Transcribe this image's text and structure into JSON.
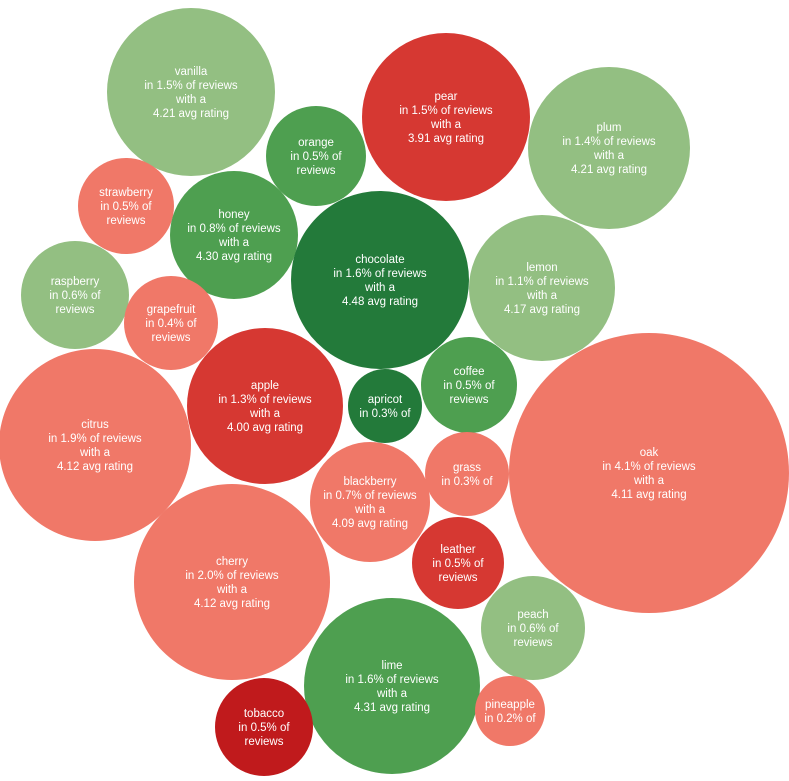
{
  "chart_data": {
    "type": "bubble",
    "title": "",
    "color_scale": {
      "low": "#c62020",
      "mid_low": "#f07868",
      "mid_high": "#93bf82",
      "high": "#237a3a"
    },
    "bubbles": [
      {
        "name": "vanilla",
        "share": "1.5%",
        "rating": "4.21",
        "lines": [
          "vanilla",
          "in 1.5% of reviews",
          "with a",
          "4.21 avg rating"
        ],
        "color": "#93bf82"
      },
      {
        "name": "pear",
        "share": "1.5%",
        "rating": "3.91",
        "lines": [
          "pear",
          "in 1.5% of reviews",
          "with a",
          "3.91 avg rating"
        ],
        "color": "#d63832"
      },
      {
        "name": "plum",
        "share": "1.4%",
        "rating": "4.21",
        "lines": [
          "plum",
          "in 1.4% of reviews",
          "with a",
          "4.21 avg rating"
        ],
        "color": "#93bf82"
      },
      {
        "name": "orange",
        "share": "0.5%",
        "rating": "",
        "lines": [
          "orange",
          "in 0.5% of",
          "reviews"
        ],
        "color": "#4e9f50"
      },
      {
        "name": "strawberry",
        "share": "0.5%",
        "rating": "",
        "lines": [
          "strawberry",
          "in 0.5% of",
          "reviews"
        ],
        "color": "#f07868"
      },
      {
        "name": "honey",
        "share": "0.8%",
        "rating": "4.30",
        "lines": [
          "honey",
          "in 0.8% of reviews",
          "with a",
          "4.30 avg rating"
        ],
        "color": "#4e9f50"
      },
      {
        "name": "chocolate",
        "share": "1.6%",
        "rating": "4.48",
        "lines": [
          "chocolate",
          "in 1.6% of reviews",
          "with a",
          "4.48 avg rating"
        ],
        "color": "#237a3a"
      },
      {
        "name": "lemon",
        "share": "1.1%",
        "rating": "4.17",
        "lines": [
          "lemon",
          "in 1.1% of reviews",
          "with a",
          "4.17 avg rating"
        ],
        "color": "#93bf82"
      },
      {
        "name": "raspberry",
        "share": "0.6%",
        "rating": "",
        "lines": [
          "raspberry",
          "in 0.6% of",
          "reviews"
        ],
        "color": "#93bf82"
      },
      {
        "name": "grapefruit",
        "share": "0.4%",
        "rating": "",
        "lines": [
          "grapefruit",
          "in 0.4% of",
          "reviews"
        ],
        "color": "#f07868"
      },
      {
        "name": "apple",
        "share": "1.3%",
        "rating": "4.00",
        "lines": [
          "apple",
          "in 1.3% of reviews",
          "with a",
          "4.00 avg rating"
        ],
        "color": "#d63832"
      },
      {
        "name": "apricot",
        "share": "0.3%",
        "rating": "",
        "lines": [
          "apricot",
          "in 0.3% of"
        ],
        "color": "#237a3a"
      },
      {
        "name": "coffee",
        "share": "0.5%",
        "rating": "",
        "lines": [
          "coffee",
          "in 0.5% of",
          "reviews"
        ],
        "color": "#4e9f50"
      },
      {
        "name": "citrus",
        "share": "1.9%",
        "rating": "4.12",
        "lines": [
          "citrus",
          "in 1.9% of reviews",
          "with a",
          "4.12 avg rating"
        ],
        "color": "#f07868"
      },
      {
        "name": "oak",
        "share": "4.1%",
        "rating": "4.11",
        "lines": [
          "oak",
          "in 4.1% of reviews",
          "with a",
          "4.11 avg rating"
        ],
        "color": "#f07868"
      },
      {
        "name": "grass",
        "share": "0.3%",
        "rating": "",
        "lines": [
          "grass",
          "in 0.3% of"
        ],
        "color": "#f07868"
      },
      {
        "name": "blackberry",
        "share": "0.7%",
        "rating": "4.09",
        "lines": [
          "blackberry",
          "in 0.7% of reviews",
          "with a",
          "4.09 avg rating"
        ],
        "color": "#f07868"
      },
      {
        "name": "leather",
        "share": "0.5%",
        "rating": "",
        "lines": [
          "leather",
          "in 0.5% of",
          "reviews"
        ],
        "color": "#d63832"
      },
      {
        "name": "cherry",
        "share": "2.0%",
        "rating": "4.12",
        "lines": [
          "cherry",
          "in 2.0% of reviews",
          "with a",
          "4.12 avg rating"
        ],
        "color": "#f07868"
      },
      {
        "name": "peach",
        "share": "0.6%",
        "rating": "",
        "lines": [
          "peach",
          "in 0.6% of",
          "reviews"
        ],
        "color": "#93bf82"
      },
      {
        "name": "lime",
        "share": "1.6%",
        "rating": "4.31",
        "lines": [
          "lime",
          "in 1.6% of reviews",
          "with a",
          "4.31 avg rating"
        ],
        "color": "#4e9f50"
      },
      {
        "name": "tobacco",
        "share": "0.5%",
        "rating": "",
        "lines": [
          "tobacco",
          "in 0.5% of",
          "reviews"
        ],
        "color": "#c01a1c"
      },
      {
        "name": "pineapple",
        "share": "0.2%",
        "rating": "",
        "lines": [
          "pineapple",
          "in 0.2% of"
        ],
        "color": "#f07868"
      }
    ]
  }
}
